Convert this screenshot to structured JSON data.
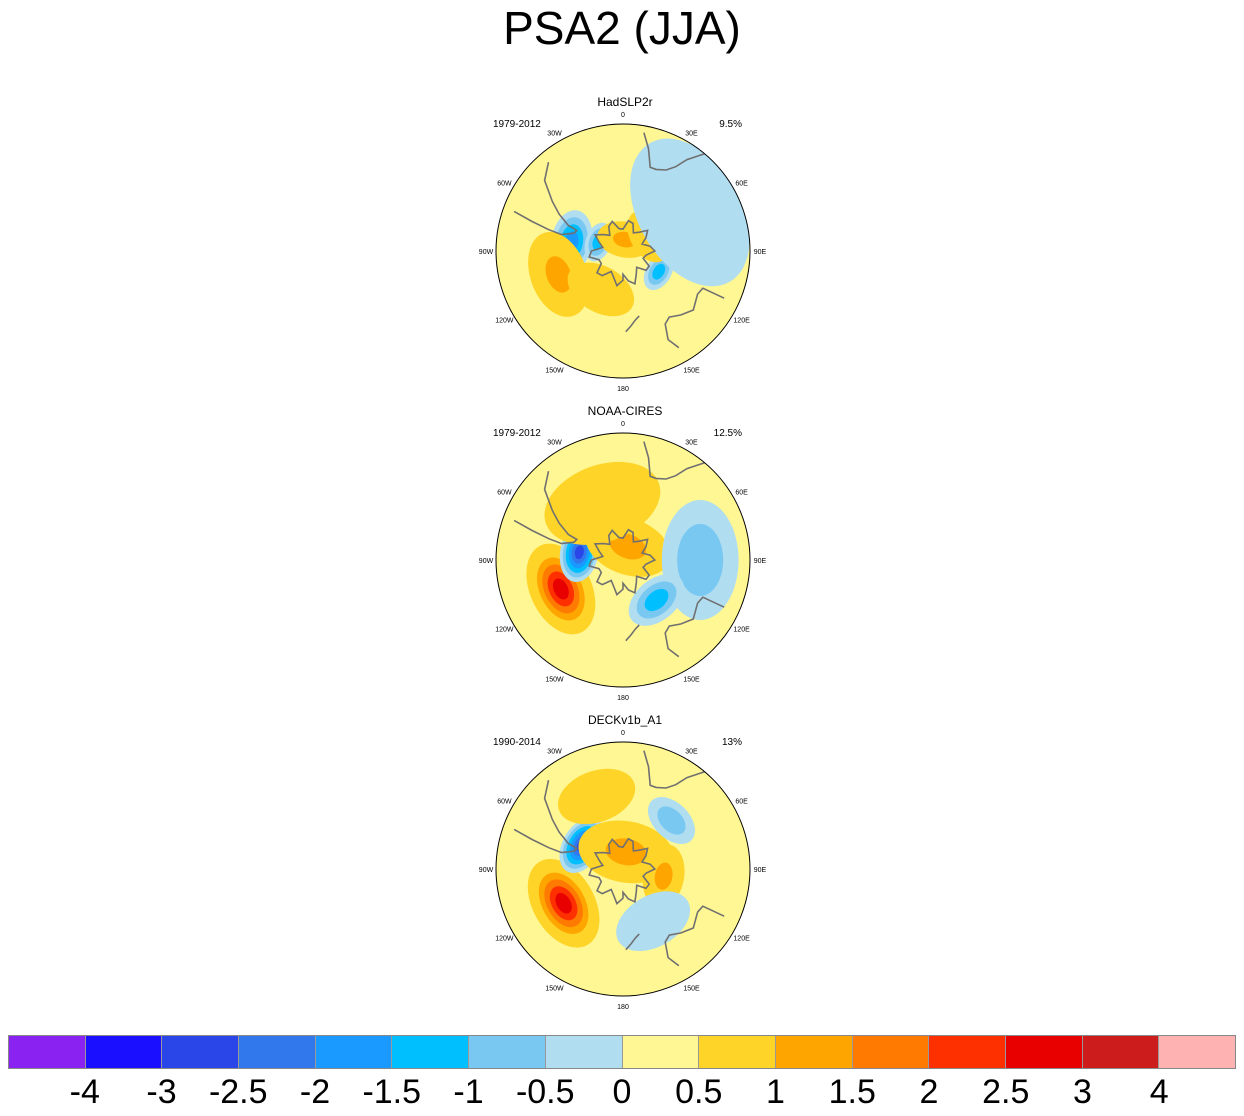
{
  "title": "PSA2 (JJA)",
  "chart_data": {
    "type": "polar-stereographic-contour-maps",
    "title": "PSA2 (JJA)",
    "variable": "PSA2 pattern, JJA season",
    "hemisphere": "Southern",
    "panels": [
      {
        "dataset": "HadSLP2r",
        "years": "1979-2012",
        "explained_variance": "9.5%",
        "features": [
          {
            "value": -2.0,
            "lon": -80,
            "lat": -55,
            "spread": 16
          },
          {
            "value": -1.5,
            "lon": -70,
            "lat": -72,
            "spread": 10
          },
          {
            "value": 1.5,
            "lon": -110,
            "lat": -45,
            "spread": 22
          },
          {
            "value": 1.5,
            "lon": 10,
            "lat": -82,
            "spread": 14
          },
          {
            "value": -1.5,
            "lon": 120,
            "lat": -62,
            "spread": 10
          },
          {
            "value": 1.0,
            "lon": 60,
            "lat": -70,
            "spread": 14
          },
          {
            "value": -0.5,
            "lon": 60,
            "lat": -40,
            "spread": 40
          },
          {
            "value": 1.0,
            "lon": -150,
            "lat": -60,
            "spread": 18
          }
        ]
      },
      {
        "dataset": "NOAA-CIRES",
        "years": "1979-2012",
        "explained_variance": "12.5%",
        "features": [
          {
            "value": 3.0,
            "lon": -115,
            "lat": -45,
            "spread": 24
          },
          {
            "value": -3.0,
            "lon": -80,
            "lat": -60,
            "spread": 15
          },
          {
            "value": 1.5,
            "lon": 20,
            "lat": -80,
            "spread": 22
          },
          {
            "value": -1.0,
            "lon": 90,
            "lat": -40,
            "spread": 30
          },
          {
            "value": -1.5,
            "lon": 140,
            "lat": -55,
            "spread": 16
          },
          {
            "value": 0.5,
            "lon": -20,
            "lat": -50,
            "spread": 30
          }
        ]
      },
      {
        "dataset": "DECKv1b_A1",
        "years": "1990-2014",
        "explained_variance": "13%",
        "features": [
          {
            "value": 3.0,
            "lon": -120,
            "lat": -45,
            "spread": 24
          },
          {
            "value": -3.0,
            "lon": -60,
            "lat": -58,
            "spread": 15
          },
          {
            "value": 1.5,
            "lon": 10,
            "lat": -78,
            "spread": 24
          },
          {
            "value": 1.5,
            "lon": 100,
            "lat": -62,
            "spread": 16
          },
          {
            "value": -1.0,
            "lon": 45,
            "lat": -45,
            "spread": 14
          },
          {
            "value": -0.5,
            "lon": 150,
            "lat": -50,
            "spread": 20
          },
          {
            "value": 0.5,
            "lon": -20,
            "lat": -40,
            "spread": 20
          }
        ]
      }
    ],
    "longitude_labels": [
      "0",
      "30E",
      "60E",
      "90E",
      "120E",
      "150E",
      "180",
      "150W",
      "120W",
      "90W",
      "60W",
      "30W"
    ],
    "colorbar": {
      "levels": [
        "-4",
        "-3",
        "-2.5",
        "-2",
        "-1.5",
        "-1",
        "-0.5",
        "0",
        "0.5",
        "1",
        "1.5",
        "2",
        "2.5",
        "3",
        "4"
      ],
      "colors": [
        "#8a22f2",
        "#1a0fff",
        "#2a45e8",
        "#3078ec",
        "#1a99ff",
        "#00bfff",
        "#78c8f2",
        "#b0ddf0",
        "#fff794",
        "#ffd428",
        "#ffa500",
        "#ff7a00",
        "#ff3000",
        "#e80000",
        "#cc1c1c",
        "#ffb2b2"
      ]
    }
  }
}
